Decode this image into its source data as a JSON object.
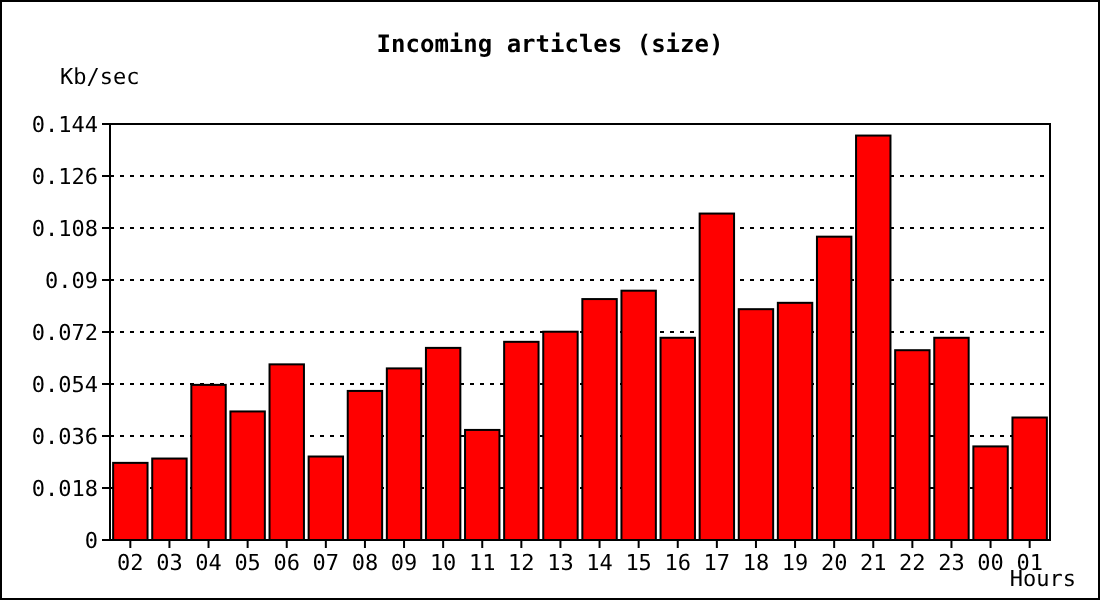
{
  "chart_data": {
    "type": "bar",
    "title": "Incoming articles (size)",
    "ylabel": "Kb/sec",
    "xlabel": "Hours",
    "categories": [
      "02",
      "03",
      "04",
      "05",
      "06",
      "07",
      "08",
      "09",
      "10",
      "11",
      "12",
      "13",
      "14",
      "15",
      "16",
      "17",
      "18",
      "19",
      "20",
      "21",
      "22",
      "23",
      "00",
      "01"
    ],
    "values": [
      0.0267,
      0.0282,
      0.0537,
      0.0445,
      0.0608,
      0.0289,
      0.0516,
      0.0594,
      0.0665,
      0.0381,
      0.0686,
      0.0721,
      0.0834,
      0.0863,
      0.07,
      0.113,
      0.0799,
      0.0821,
      0.105,
      0.14,
      0.0657,
      0.07,
      0.0324,
      0.0424
    ],
    "color": "#ff0000",
    "ylim": [
      0,
      0.144
    ],
    "yticks": [
      0,
      0.018,
      0.036,
      0.054,
      0.072,
      0.09,
      0.108,
      0.126,
      0.144
    ],
    "grid": "y"
  }
}
